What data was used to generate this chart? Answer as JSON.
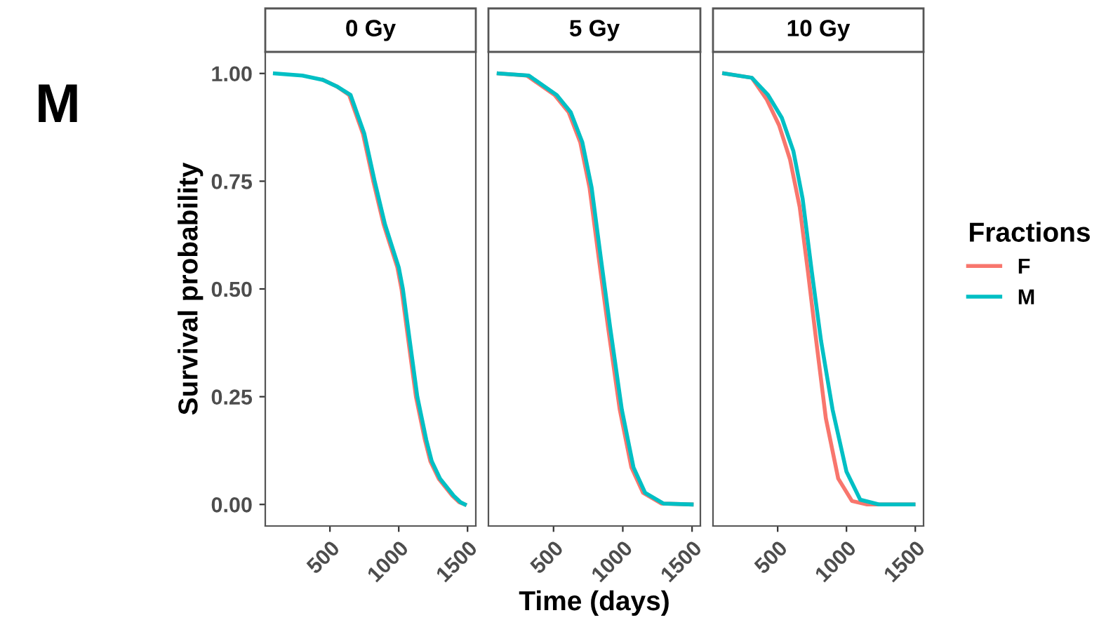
{
  "chart_data": [
    {
      "type": "line",
      "title": "0 Gy",
      "ylabel": "Survival probability",
      "annotations": [
        "M"
      ],
      "xlim": [
        30,
        1560
      ],
      "ylim": [
        -0.05,
        1.05
      ],
      "xticks": [
        500,
        1000,
        1500
      ],
      "yticks": [
        {
          "value": 0,
          "label": "0.00"
        },
        {
          "value": 0.25,
          "label": "0.25"
        },
        {
          "value": 0.5,
          "label": "0.50"
        },
        {
          "value": 0.75,
          "label": "0.75"
        },
        {
          "value": 1,
          "label": "1.00"
        }
      ],
      "grid": false,
      "legend": false,
      "series": [
        {
          "color": "#f8766d",
          "x": [
            450,
            550,
            640,
            740,
            815,
            890,
            990,
            1020,
            1070,
            1125,
            1190,
            1230,
            1290,
            1390,
            1440,
            1480
          ],
          "values": [
            0.985,
            0.97,
            0.95,
            0.86,
            0.75,
            0.65,
            0.55,
            0.5,
            0.38,
            0.25,
            0.15,
            0.1,
            0.06,
            0.02,
            0.005,
            0.0
          ]
        },
        {
          "color": "#00bfc4",
          "x": [
            100,
            300,
            450,
            550,
            650,
            750,
            825,
            900,
            1000,
            1030,
            1080,
            1135,
            1200,
            1240,
            1300,
            1400,
            1450,
            1480
          ],
          "values": [
            1.0,
            0.995,
            0.985,
            0.97,
            0.95,
            0.86,
            0.75,
            0.65,
            0.55,
            0.5,
            0.38,
            0.25,
            0.15,
            0.1,
            0.06,
            0.02,
            0.005,
            0.0
          ]
        }
      ]
    },
    {
      "type": "line",
      "title": "5 Gy",
      "xlabel": "Time (days)",
      "xlim": [
        30,
        1560
      ],
      "ylim": [
        -0.05,
        1.05
      ],
      "xticks": [
        500,
        1000,
        1500
      ],
      "tick_labels": "x",
      "grid": false,
      "legend": false,
      "series": [
        {
          "color": "#f8766d",
          "x": [
            104,
            307,
            508,
            609,
            693,
            760,
            827,
            894,
            978,
            1062,
            1146,
            1280,
            1497
          ],
          "values": [
            1.0,
            0.995,
            0.95,
            0.91,
            0.84,
            0.735,
            0.57,
            0.41,
            0.22,
            0.086,
            0.027,
            0.002,
            0.0
          ]
        },
        {
          "color": "#00bfc4",
          "x": [
            104,
            322,
            523,
            624,
            708,
            775,
            842,
            909,
            993,
            1077,
            1161,
            1295,
            1497
          ],
          "values": [
            1.0,
            0.995,
            0.95,
            0.91,
            0.84,
            0.735,
            0.57,
            0.41,
            0.22,
            0.086,
            0.027,
            0.002,
            0.0
          ]
        }
      ]
    },
    {
      "type": "line",
      "title": "10 Gy",
      "legend_title": "Fractions",
      "xlim": [
        30,
        1560
      ],
      "ylim": [
        -0.05,
        1.05
      ],
      "xticks": [
        500,
        1000,
        1500
      ],
      "tick_labels": "x",
      "grid": false,
      "legend": "right",
      "series": [
        {
          "name": "F",
          "color": "#f8766d",
          "x": [
            111,
            312,
            420,
            510,
            590,
            660,
            720,
            780,
            850,
            940,
            1040,
            1150,
            1487
          ],
          "values": [
            1.0,
            0.99,
            0.94,
            0.88,
            0.8,
            0.69,
            0.54,
            0.38,
            0.2,
            0.06,
            0.008,
            0.0,
            0.0
          ]
        },
        {
          "name": "M",
          "color": "#00bfc4",
          "x": [
            111,
            312,
            430,
            530,
            614,
            681,
            748,
            815,
            899,
            1000,
            1100,
            1235,
            1487
          ],
          "values": [
            1.0,
            0.99,
            0.95,
            0.897,
            0.82,
            0.71,
            0.54,
            0.38,
            0.22,
            0.076,
            0.011,
            0.0,
            0.0
          ]
        }
      ]
    }
  ]
}
